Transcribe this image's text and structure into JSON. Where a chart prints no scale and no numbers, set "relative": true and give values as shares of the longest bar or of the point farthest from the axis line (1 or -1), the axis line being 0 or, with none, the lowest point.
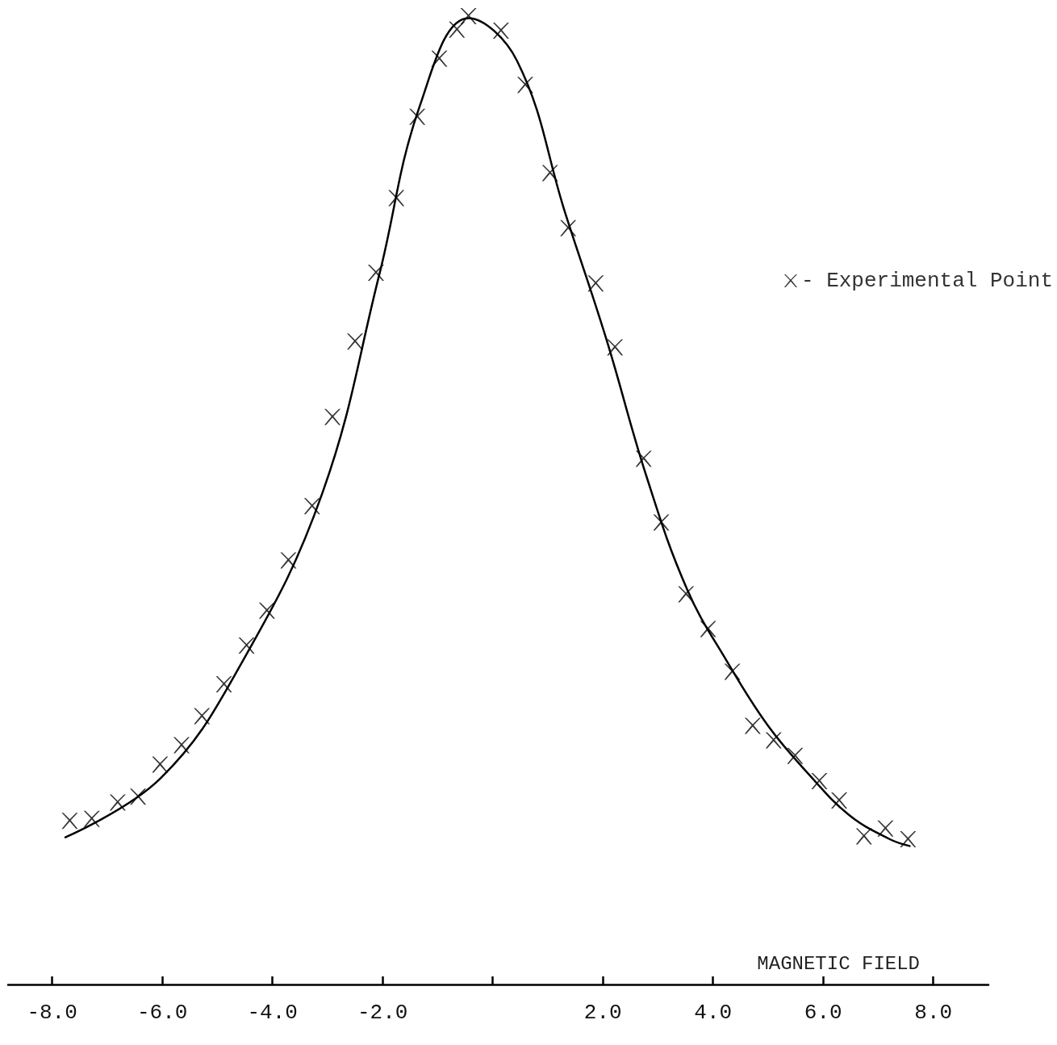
{
  "chart_data": {
    "type": "scatter",
    "relative": true,
    "xlabel": "MAGNETIC FIELD",
    "xlim": [
      -8.8,
      9.0
    ],
    "xticks": [
      {
        "value": -8,
        "label": "-8.0"
      },
      {
        "value": -6,
        "label": "-6.0"
      },
      {
        "value": -4,
        "label": "-4.0"
      },
      {
        "value": -2,
        "label": "-2.0"
      },
      {
        "value": 0,
        "label": null
      },
      {
        "value": 2,
        "label": "2.0"
      },
      {
        "value": 4,
        "label": "4.0"
      },
      {
        "value": 6,
        "label": "6.0"
      },
      {
        "value": 8,
        "label": "8.0"
      }
    ],
    "grid": false,
    "legend": "top right",
    "marker": "cross",
    "series": [
      {
        "name": "- Experimental Point",
        "color": "#000000",
        "marker": "cross",
        "x": [
          -7.68,
          -7.28,
          -6.81,
          -6.44,
          -6.04,
          -5.65,
          -5.28,
          -4.88,
          -4.47,
          -4.1,
          -3.71,
          -3.28,
          -2.91,
          -2.5,
          -2.12,
          -1.75,
          -1.37,
          -0.97,
          -0.65,
          -0.44,
          0.15,
          0.59,
          1.04,
          1.37,
          1.87,
          2.22,
          2.74,
          3.06,
          3.51,
          3.91,
          4.35,
          4.72,
          5.1,
          5.49,
          5.93,
          6.29,
          6.74,
          7.13,
          7.54
        ],
        "values": [
          0.169,
          0.171,
          0.188,
          0.194,
          0.227,
          0.247,
          0.277,
          0.31,
          0.35,
          0.386,
          0.438,
          0.494,
          0.586,
          0.664,
          0.735,
          0.812,
          0.896,
          0.956,
          0.986,
          1.0,
          0.985,
          0.929,
          0.838,
          0.781,
          0.724,
          0.658,
          0.543,
          0.477,
          0.403,
          0.367,
          0.323,
          0.267,
          0.252,
          0.236,
          0.21,
          0.19,
          0.153,
          0.161,
          0.15
        ]
      },
      {
        "type": "line",
        "color": "#000000",
        "marker": "none",
        "line_style": "solid",
        "x": [
          -7.76,
          -6.03,
          -4.56,
          -3.09,
          -2.06,
          -1.32,
          -0.44,
          0.44,
          1.32,
          2.06,
          2.79,
          3.53,
          4.26,
          5.0,
          5.74,
          6.47,
          7.21,
          7.57
        ],
        "values": [
          0.152,
          0.213,
          0.332,
          0.508,
          0.733,
          0.908,
          0.998,
          0.954,
          0.796,
          0.667,
          0.525,
          0.408,
          0.333,
          0.267,
          0.217,
          0.175,
          0.15,
          0.143
        ]
      }
    ]
  }
}
